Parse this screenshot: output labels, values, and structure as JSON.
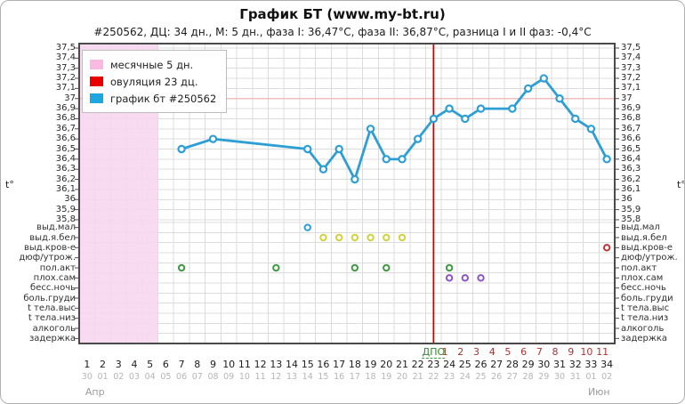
{
  "window": {
    "title": "График БТ (www.my-bt.ru)",
    "subtitle": "#250562, ДЦ: 34 дн., М: 5 дн., фаза I: 36,47°С, фаза II: 36,87°С, разница I и II фаз: -0,4°С"
  },
  "legend": {
    "items": [
      {
        "label": "месячные 5 дн.",
        "color": "#f9b9e0"
      },
      {
        "label": "овуляция 23 дц.",
        "color": "#e80000"
      },
      {
        "label": "график бт #250562",
        "color": "#1ea6df"
      }
    ]
  },
  "chart_data": {
    "type": "line",
    "title": "График БТ (www.my-bt.ru)",
    "ylim": [
      35.8,
      37.5
    ],
    "xlim": [
      1,
      34
    ],
    "grid": true,
    "y_tick_labels": [
      "37,5",
      "37,4",
      "37,3",
      "37,2",
      "37,1",
      "37",
      "36,9",
      "36,8",
      "36,7",
      "36,6",
      "36,5",
      "36,4",
      "36,3",
      "36,2",
      "36,1",
      "36",
      "35,9",
      "35,8"
    ],
    "x_ticks": [
      1,
      2,
      3,
      4,
      5,
      6,
      7,
      8,
      9,
      10,
      11,
      12,
      13,
      14,
      15,
      16,
      17,
      18,
      19,
      20,
      21,
      22,
      23,
      24,
      25,
      26,
      27,
      28,
      29,
      30,
      31,
      32,
      33,
      34
    ],
    "x_dates": [
      "30",
      "01",
      "02",
      "03",
      "04",
      "05",
      "06",
      "07",
      "08",
      "09",
      "10",
      "11",
      "12",
      "13",
      "14",
      "15",
      "16",
      "17",
      "18",
      "19",
      "20",
      "21",
      "22",
      "23",
      "24",
      "25",
      "26",
      "27",
      "28",
      "29",
      "30",
      "31",
      "01",
      "02"
    ],
    "months": [
      {
        "label": "Апр",
        "anchor_day": 1.5
      },
      {
        "label": "Июн",
        "anchor_day": 33.5
      }
    ],
    "t_axis_label_left": "t°",
    "t_axis_label_right": "t°",
    "series": [
      {
        "name": "график бт #250562",
        "points": [
          [
            7,
            36.5
          ],
          [
            9,
            36.6
          ],
          [
            15,
            36.5
          ],
          [
            16,
            36.3
          ],
          [
            17,
            36.5
          ],
          [
            18,
            36.2
          ],
          [
            19,
            36.7
          ],
          [
            20,
            36.4
          ],
          [
            21,
            36.4
          ],
          [
            22,
            36.6
          ],
          [
            23,
            36.8
          ],
          [
            24,
            36.9
          ],
          [
            25,
            36.8
          ],
          [
            26,
            36.9
          ],
          [
            28,
            36.9
          ],
          [
            29,
            37.1
          ],
          [
            30,
            37.2
          ],
          [
            31,
            37.0
          ],
          [
            32,
            36.8
          ],
          [
            33,
            36.7
          ],
          [
            34,
            36.4
          ]
        ]
      }
    ],
    "reference_line_value": 37.0,
    "ovulation_day": 23,
    "menses": {
      "from_day": 1,
      "to_day": 5
    },
    "dpo": {
      "label": "ДПО",
      "label_day": 23,
      "numbers": [
        1,
        2,
        3,
        4,
        5,
        6,
        7,
        8,
        9,
        10,
        11
      ],
      "first_number_day": 24
    },
    "symptom_rows": [
      "выд.мал",
      "выд.я.бел",
      "выд.кров-е",
      "дюф/утрож.",
      "пол.акт",
      "плох.сам",
      "бесс.ночь",
      "боль.груди",
      "t тела.выс",
      "t тела.низ",
      "алкоголь",
      "задержка"
    ],
    "symptom_markers": [
      {
        "row": "выд.мал",
        "day": 15,
        "color": "blue"
      },
      {
        "row": "выд.я.бел",
        "day": 16,
        "color": "yellow"
      },
      {
        "row": "выд.я.бел",
        "day": 17,
        "color": "yellow"
      },
      {
        "row": "выд.я.бел",
        "day": 18,
        "color": "yellow"
      },
      {
        "row": "выд.я.бел",
        "day": 19,
        "color": "yellow"
      },
      {
        "row": "выд.я.бел",
        "day": 20,
        "color": "yellow"
      },
      {
        "row": "выд.я.бел",
        "day": 21,
        "color": "yellow"
      },
      {
        "row": "выд.кров-е",
        "day": 34,
        "color": "red"
      },
      {
        "row": "пол.акт",
        "day": 7,
        "color": "green"
      },
      {
        "row": "пол.акт",
        "day": 13,
        "color": "green"
      },
      {
        "row": "пол.акт",
        "day": 18,
        "color": "green"
      },
      {
        "row": "пол.акт",
        "day": 20,
        "color": "green"
      },
      {
        "row": "пол.акт",
        "day": 24,
        "color": "green"
      },
      {
        "row": "плох.сам",
        "day": 24,
        "color": "purple"
      },
      {
        "row": "плох.сам",
        "day": 25,
        "color": "purple"
      },
      {
        "row": "плох.сам",
        "day": 26,
        "color": "purple"
      }
    ]
  },
  "colors": {
    "bt_line": "#2d9fd5",
    "menses_fill": "#f7d6ee",
    "ovulation_line": "#d40000",
    "reference_line": "#f0b4b6",
    "grid": "#dcdcdc",
    "plot_border": "#4a4a4a",
    "tick": "#4d4d4d",
    "marker_blue": "#2d9fd5",
    "marker_yellow": "#d2d23e",
    "marker_green": "#3f9b40",
    "marker_purple": "#8f52cc",
    "marker_red": "#c43434"
  }
}
